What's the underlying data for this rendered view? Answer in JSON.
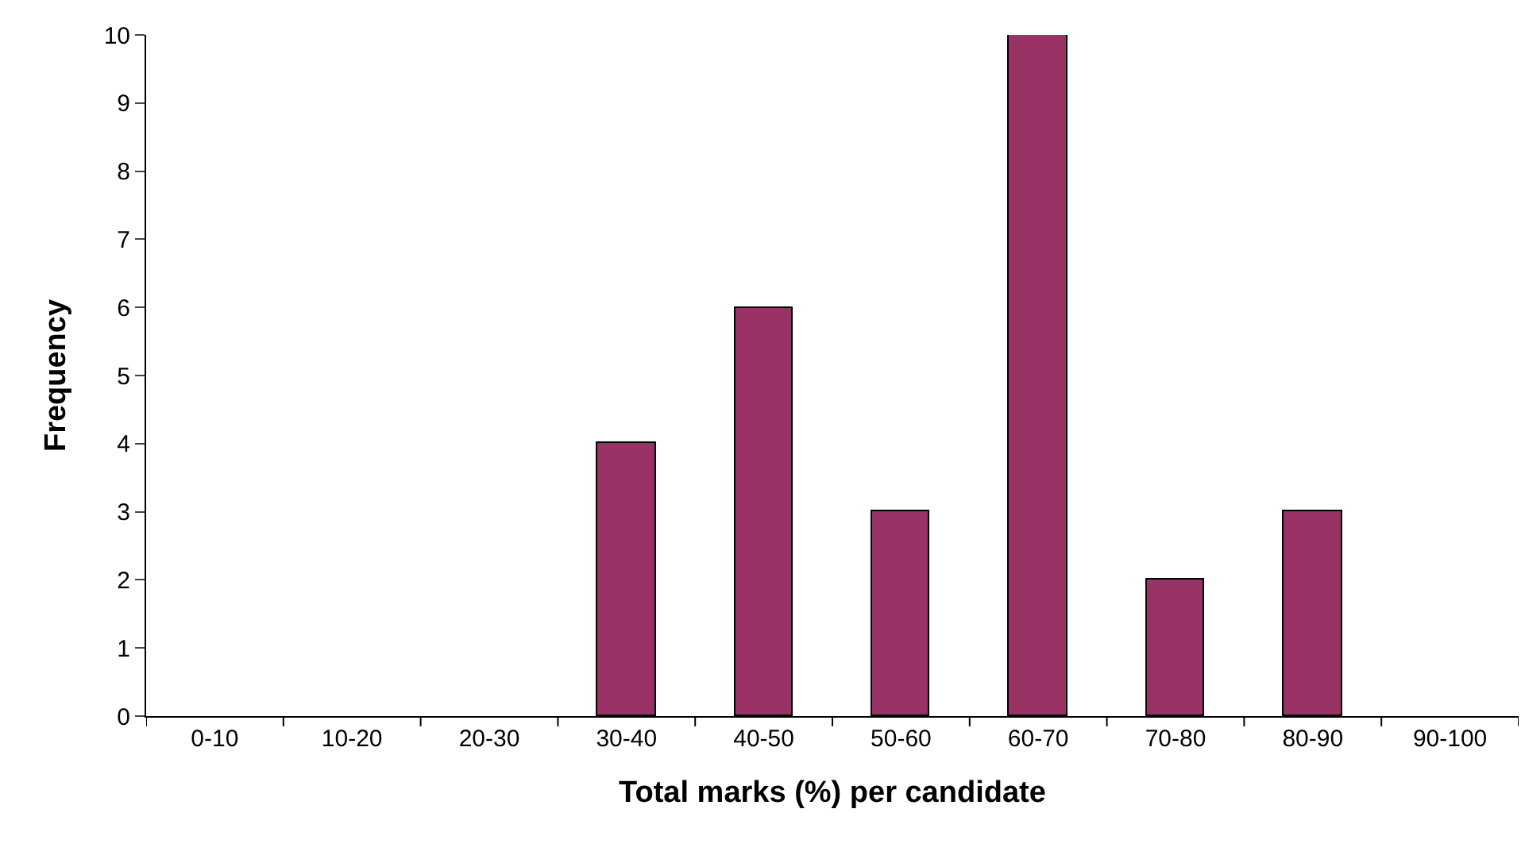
{
  "chart_data": {
    "type": "bar",
    "xlabel": "Total marks (%) per candidate",
    "ylabel": "Frequency",
    "categories": [
      "0-10",
      "10-20",
      "20-30",
      "30-40",
      "40-50",
      "50-60",
      "60-70",
      "70-80",
      "80-90",
      "90-100"
    ],
    "values": [
      0,
      0,
      0,
      4,
      6,
      3,
      10,
      2,
      3,
      0
    ],
    "color": "#993366",
    "ylim": [
      0,
      10
    ],
    "yticks": [
      0,
      1,
      2,
      3,
      4,
      5,
      6,
      7,
      8,
      9,
      10
    ],
    "grid": false,
    "legend": false
  }
}
